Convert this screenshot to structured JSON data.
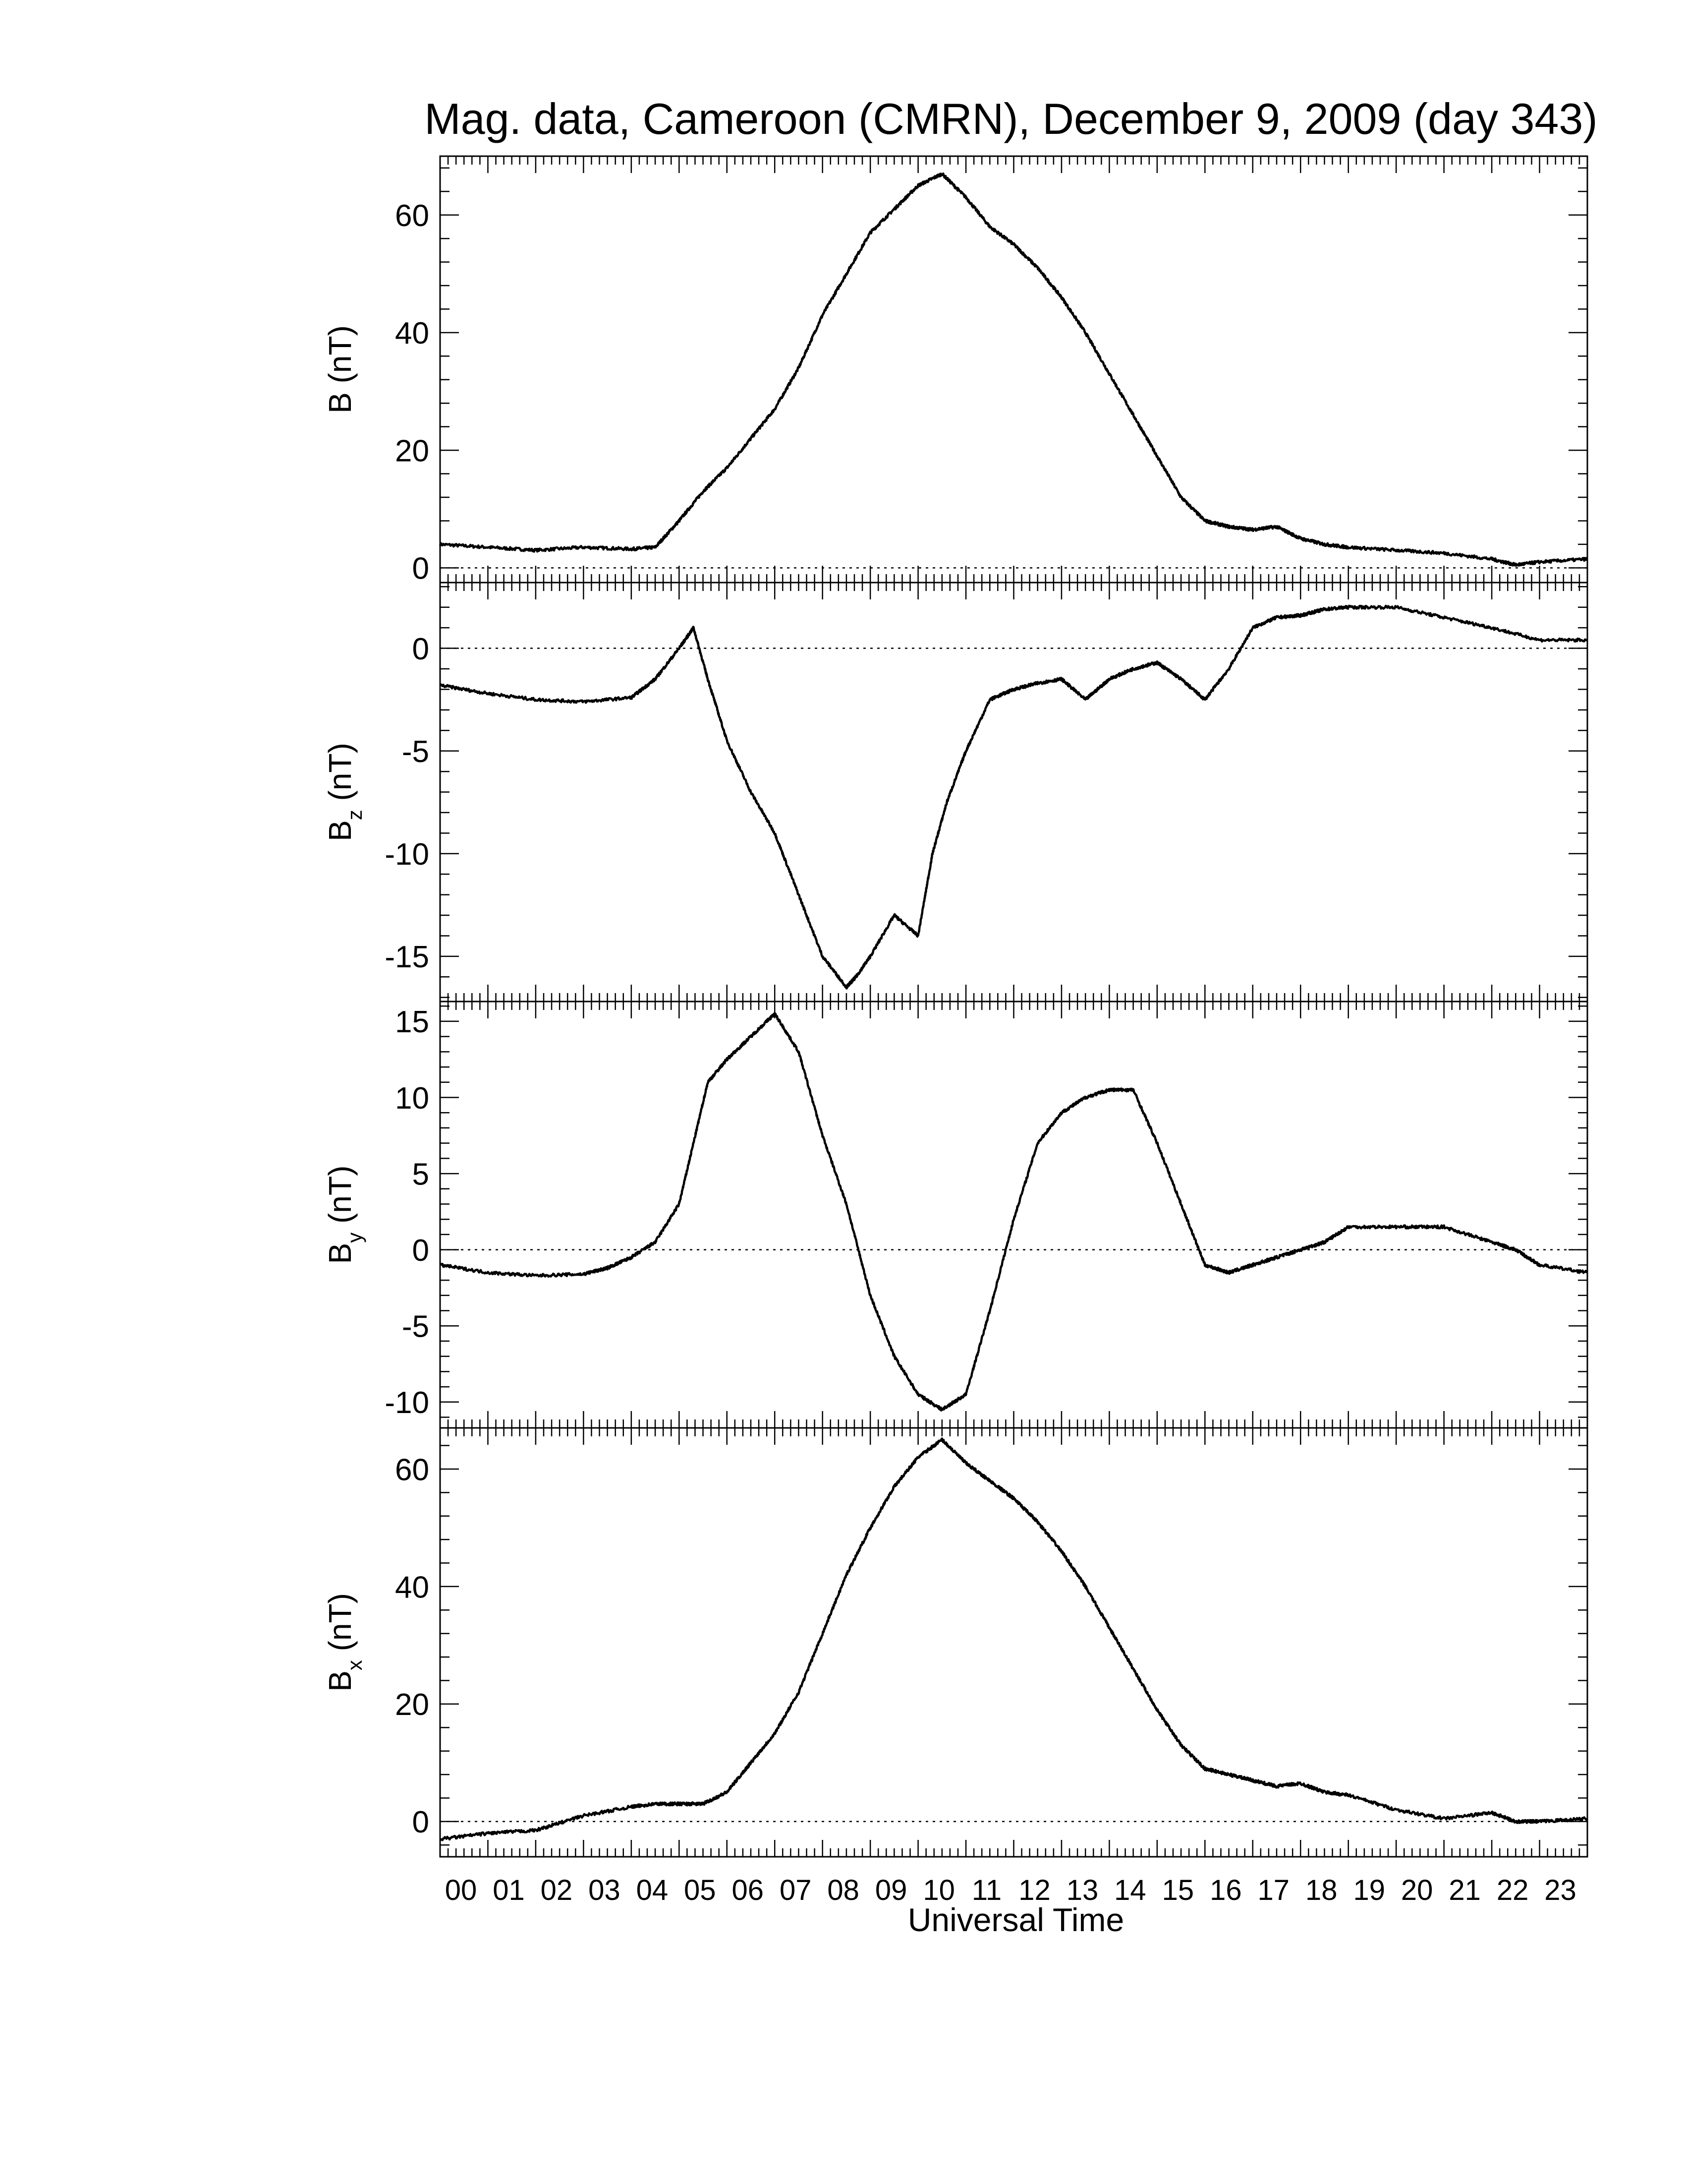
{
  "title": "Mag. data, Cameroon (CMRN), December 9, 2009 (day 343)",
  "x_axis": {
    "label": "Universal Time",
    "tick_labels": [
      "00",
      "01",
      "02",
      "03",
      "04",
      "05",
      "06",
      "07",
      "08",
      "09",
      "10",
      "11",
      "12",
      "13",
      "14",
      "15",
      "16",
      "17",
      "18",
      "19",
      "20",
      "21",
      "22",
      "23"
    ]
  },
  "chart_data": [
    {
      "type": "line",
      "panel": "B",
      "ylabel": "B (nT)",
      "ylabel_main": "B",
      "ylabel_sub": "",
      "ylabel_unit": "(nT)",
      "ylim": [
        -2.5,
        70
      ],
      "yticks": [
        0,
        20,
        40,
        60
      ],
      "ytick_labels": [
        "0",
        "20",
        "40",
        "60"
      ],
      "zero_line": true,
      "x": [
        0,
        1,
        2,
        3,
        4,
        4.5,
        5,
        5.5,
        6,
        6.5,
        7,
        7.5,
        8,
        8.5,
        9,
        9.5,
        10,
        10.5,
        11,
        11.5,
        12,
        12.5,
        13,
        13.5,
        14,
        14.5,
        15,
        15.5,
        16,
        16.5,
        17,
        17.5,
        18,
        18.5,
        19,
        20,
        21,
        22,
        22.5,
        23,
        24
      ],
      "y": [
        4,
        3.5,
        3,
        3.5,
        3.2,
        3.5,
        8,
        13,
        17,
        22,
        27,
        34,
        43,
        50,
        57,
        61,
        65,
        67,
        63,
        58,
        55,
        51,
        46,
        40,
        33,
        26,
        19,
        12,
        8,
        7,
        6.5,
        7,
        5,
        4,
        3.5,
        3,
        2.5,
        1.5,
        0.5,
        1,
        1.5
      ]
    },
    {
      "type": "line",
      "panel": "Bz",
      "ylabel": "Bz (nT)",
      "ylabel_main": "B",
      "ylabel_sub": "z",
      "ylabel_unit": "(nT)",
      "ylim": [
        -17.2,
        3.2
      ],
      "yticks": [
        0,
        -5,
        -10,
        -15
      ],
      "ytick_labels": [
        "0",
        "-5",
        "-10",
        "-15"
      ],
      "zero_line": true,
      "x": [
        0,
        1,
        2,
        3,
        4,
        4.5,
        5,
        5.3,
        5.6,
        6,
        6.5,
        7,
        7.5,
        8,
        8.5,
        8.7,
        9,
        9.5,
        10,
        10.3,
        10.6,
        11,
        11.5,
        12,
        12.5,
        13,
        13.5,
        14,
        14.5,
        15,
        15.5,
        16,
        16.5,
        17,
        17.5,
        18,
        18.5,
        19,
        20,
        21,
        22,
        23,
        24
      ],
      "y": [
        -1.8,
        -2.2,
        -2.5,
        -2.6,
        -2.4,
        -1.5,
        0,
        1,
        -1.5,
        -4.5,
        -7,
        -9,
        -12,
        -15,
        -16.5,
        -16,
        -15,
        -13,
        -14,
        -10,
        -7.5,
        -5,
        -2.5,
        -2,
        -1.7,
        -1.5,
        -2.5,
        -1.5,
        -1,
        -0.7,
        -1.5,
        -2.5,
        -1,
        1,
        1.5,
        1.6,
        1.9,
        2,
        2,
        1.5,
        1,
        0.4,
        0.4
      ]
    },
    {
      "type": "line",
      "panel": "By",
      "ylabel": "By (nT)",
      "ylabel_main": "B",
      "ylabel_sub": "y",
      "ylabel_unit": "(nT)",
      "ylim": [
        -11.7,
        16.3
      ],
      "yticks": [
        15,
        10,
        5,
        0,
        -5,
        -10
      ],
      "ytick_labels": [
        "15",
        "10",
        "5",
        "0",
        "-5",
        "-10"
      ],
      "zero_line": true,
      "x": [
        0,
        1,
        2,
        3,
        3.5,
        4,
        4.5,
        5,
        5.3,
        5.6,
        6,
        6.5,
        7,
        7.5,
        8,
        8.5,
        9,
        9.5,
        10,
        10.5,
        11,
        11.5,
        12,
        12.5,
        13,
        13.5,
        14,
        14.5,
        15,
        15.5,
        16,
        16.5,
        17,
        17.5,
        18,
        18.5,
        19,
        20,
        21,
        22,
        22.5,
        23,
        24
      ],
      "y": [
        -1,
        -1.5,
        -1.7,
        -1.6,
        -1.2,
        -0.5,
        0.5,
        3,
        7,
        11,
        12.5,
        14,
        15.5,
        13,
        7.5,
        3,
        -3,
        -7,
        -9.5,
        -10.5,
        -9.5,
        -4,
        2,
        7,
        9,
        10,
        10.5,
        10.5,
        7,
        3,
        -1,
        -1.5,
        -1,
        -0.5,
        0,
        0.5,
        1.5,
        1.5,
        1.5,
        0.5,
        0,
        -1,
        -1.5
      ]
    },
    {
      "type": "line",
      "panel": "Bx",
      "ylabel": "Bx (nT)",
      "ylabel_main": "B",
      "ylabel_sub": "x",
      "ylabel_unit": "(nT)",
      "ylim": [
        -6,
        67
      ],
      "yticks": [
        0,
        20,
        40,
        60
      ],
      "ytick_labels": [
        "0",
        "20",
        "40",
        "60"
      ],
      "zero_line": true,
      "x": [
        0,
        1,
        2,
        3,
        4,
        4.5,
        5,
        5.5,
        6,
        6.5,
        7,
        7.5,
        8,
        8.5,
        9,
        9.5,
        10,
        10.5,
        11,
        11.5,
        12,
        12.5,
        13,
        13.5,
        14,
        14.5,
        15,
        15.5,
        16,
        16.5,
        17,
        17.5,
        18,
        18.5,
        19,
        20,
        21,
        22,
        22.5,
        23,
        24
      ],
      "y": [
        -3,
        -2,
        -1.5,
        1,
        2.5,
        3,
        3,
        3,
        5,
        10,
        15,
        22,
        32,
        42,
        50,
        57,
        62,
        65,
        61,
        58,
        55,
        51,
        46,
        40,
        33,
        26,
        19,
        13,
        9,
        8,
        7,
        6,
        6.5,
        5,
        4.5,
        2,
        0.5,
        1.5,
        0,
        0,
        0.5
      ]
    }
  ]
}
